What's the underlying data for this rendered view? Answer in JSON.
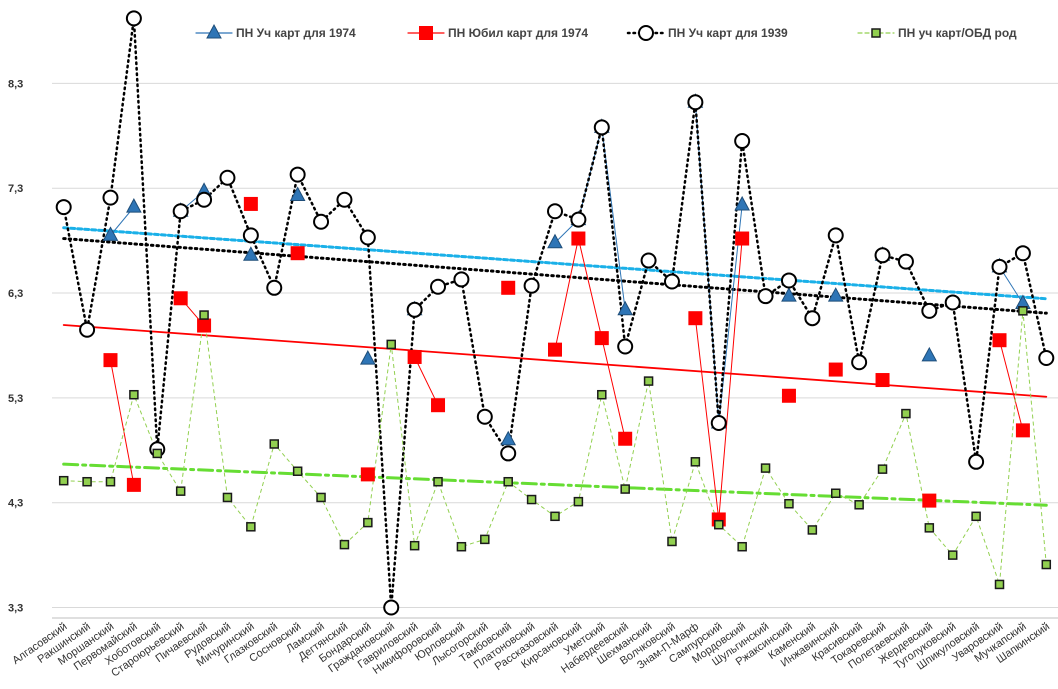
{
  "chart_data": {
    "type": "line",
    "categories": [
      "Алгасовский",
      "Ракшинский",
      "Моршанский",
      "Первомайский",
      "Хоботовский",
      "Староюрьевский",
      "Пичаевский",
      "Рудовский",
      "Мичуринский",
      "Глазковский",
      "Сосновский",
      "Ламский",
      "Дегтянский",
      "Бондарский",
      "Граждановский",
      "Гавриловский",
      "Никифоровский",
      "Юрловский",
      "Лысогорский",
      "Тамбовский",
      "Платоновский",
      "Рассказовский",
      "Кирсановский",
      "Уметский",
      "Набердеевский",
      "Шехманский",
      "Волчковский",
      "Знам-П-Марф",
      "Сампурский",
      "Мордовский",
      "Шульгинский",
      "Ржаксинский",
      "Каменский",
      "Инжавинский",
      "Красивский",
      "Токаревский",
      "Полетаевский",
      "Жердевский",
      "Туголуковский",
      "Шпикуловский",
      "Уваровский",
      "Мучкапский",
      "Шапкинский"
    ],
    "series": [
      {
        "name": "ПН Уч карт для 1974",
        "color": "#2e75b6",
        "marker": "triangle",
        "line_style": "solid",
        "trend_color": "#1ab0e8",
        "trend_style": "dashed",
        "values": [
          null,
          null,
          6.85,
          7.12,
          null,
          7.08,
          7.27,
          null,
          6.66,
          null,
          7.23,
          null,
          null,
          5.67,
          null,
          6.14,
          null,
          null,
          null,
          4.9,
          null,
          6.78,
          7.0,
          7.88,
          6.14,
          null,
          null,
          8.12,
          5.06,
          7.14,
          null,
          6.27,
          null,
          6.27,
          null,
          6.66,
          null,
          5.7,
          null,
          null,
          6.55,
          6.2,
          null
        ]
      },
      {
        "name": "ПН Юбил карт для 1974",
        "color": "#ff0000",
        "marker": "square",
        "line_style": "solid",
        "trend_color": "#ff0000",
        "trend_style": "solid",
        "values": [
          null,
          null,
          5.66,
          4.47,
          null,
          6.25,
          5.99,
          null,
          7.15,
          null,
          6.68,
          null,
          null,
          4.57,
          null,
          5.69,
          5.23,
          null,
          null,
          6.35,
          null,
          5.76,
          6.82,
          5.87,
          4.91,
          null,
          null,
          6.06,
          4.14,
          6.82,
          null,
          5.32,
          null,
          5.57,
          null,
          5.47,
          null,
          4.32,
          null,
          null,
          5.85,
          4.99,
          null
        ]
      },
      {
        "name": "ПН Уч карт для 1939",
        "color": "#000000",
        "marker": "circle",
        "line_style": "dotted",
        "trend_color": "#000000",
        "trend_style": "dotted",
        "values": [
          7.12,
          5.95,
          7.21,
          8.92,
          4.81,
          7.08,
          7.19,
          7.4,
          6.85,
          6.35,
          7.43,
          6.98,
          7.19,
          6.83,
          3.3,
          6.14,
          6.36,
          6.43,
          5.12,
          4.77,
          6.37,
          7.08,
          7.0,
          7.88,
          5.79,
          6.61,
          6.41,
          8.12,
          5.06,
          7.75,
          6.27,
          6.42,
          6.06,
          6.85,
          5.64,
          6.66,
          6.6,
          6.13,
          6.21,
          4.69,
          6.55,
          6.68,
          5.68
        ]
      },
      {
        "name": "ПН уч карт/ОБД род",
        "color": "#92d050",
        "marker": "square",
        "line_style": "dashed",
        "trend_color": "#66dd33",
        "trend_style": "dashdot",
        "values": [
          4.51,
          4.5,
          4.5,
          5.33,
          4.77,
          4.41,
          6.09,
          4.35,
          4.07,
          4.86,
          4.6,
          4.35,
          3.9,
          4.11,
          5.81,
          3.89,
          4.5,
          3.88,
          3.95,
          4.5,
          4.33,
          4.17,
          4.31,
          5.33,
          4.43,
          5.46,
          3.93,
          4.69,
          4.09,
          3.88,
          4.63,
          4.29,
          4.04,
          4.39,
          4.28,
          4.62,
          5.15,
          4.06,
          3.8,
          4.17,
          3.52,
          6.13,
          3.71
        ]
      }
    ],
    "ylim": [
      3.2,
      9.0
    ],
    "yticks": [
      {
        "value": 3.3,
        "label": "3,3"
      },
      {
        "value": 4.3,
        "label": "4,3"
      },
      {
        "value": 5.3,
        "label": "5,3"
      },
      {
        "value": 6.3,
        "label": "6,3"
      },
      {
        "value": 7.3,
        "label": "7,3"
      },
      {
        "value": 8.3,
        "label": "8,3"
      }
    ],
    "grid": true,
    "trendline": true,
    "legend": "top-right"
  }
}
